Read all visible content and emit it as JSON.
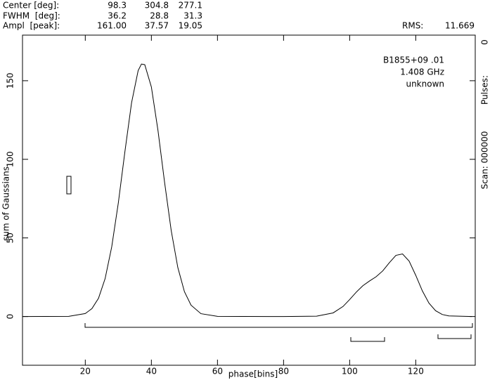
{
  "header": {
    "rows": [
      [
        "Center [deg]:",
        "98.3",
        "304.8",
        "277.1"
      ],
      [
        "FWHM  [deg]:",
        "36.2",
        "28.8",
        "31.3"
      ],
      [
        "Ampl  [peak]:",
        "161.00",
        "37.57",
        "19.05"
      ]
    ],
    "rms_label": "RMS:",
    "rms": "11.669"
  },
  "side": {
    "scan": "Scan: 000000",
    "pulses_label": "Pulses:",
    "pulses": "0"
  },
  "chart_data": {
    "type": "line",
    "annotations": [
      "B1855+09 .01",
      "1.408 GHz",
      "unknown"
    ],
    "x_label": "phase[bins]",
    "y_label": "sum of Gaussians",
    "x": [
      1,
      15,
      20,
      22,
      24,
      26,
      28,
      30,
      32,
      34,
      36,
      37,
      38,
      40,
      42,
      44,
      46,
      48,
      50,
      52,
      55,
      60,
      80,
      90,
      95,
      98,
      100,
      102,
      104,
      106,
      108,
      110,
      112,
      114,
      116,
      118,
      120,
      122,
      124,
      126,
      128,
      130,
      137
    ],
    "series": [
      {
        "name": "sum of Gaussians",
        "color": "#000000",
        "values": [
          0,
          0.1,
          1.9,
          5.0,
          11.6,
          24.1,
          44.3,
          72.3,
          105,
          135.9,
          156.5,
          160.6,
          160.2,
          146,
          118.3,
          85.3,
          54.7,
          31.2,
          15.8,
          7.2,
          1.8,
          0.1,
          0,
          0.2,
          2.3,
          6.4,
          10.8,
          15.5,
          19.6,
          22.6,
          25.3,
          29.0,
          34.2,
          38.9,
          39.8,
          35.2,
          26.2,
          16.3,
          8.5,
          3.7,
          1.3,
          0.4,
          0
        ]
      }
    ],
    "xlim": [
      1,
      138
    ],
    "ylim": [
      -31,
      179
    ],
    "xticks": [
      20,
      40,
      60,
      80,
      100,
      120
    ],
    "yticks": [
      0,
      50,
      100,
      150
    ]
  }
}
